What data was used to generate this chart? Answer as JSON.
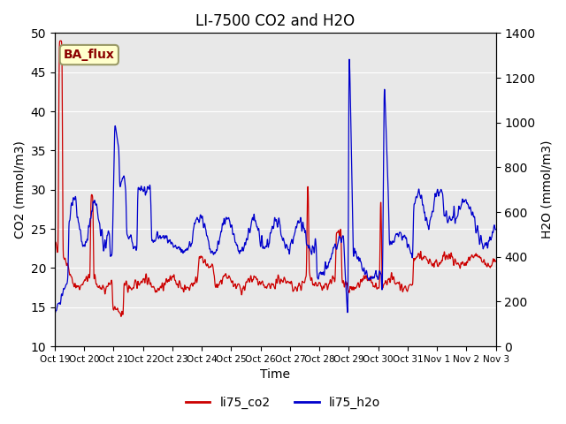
{
  "title": "LI-7500 CO2 and H2O",
  "xlabel": "Time",
  "ylabel_left": "CO2 (mmol/m3)",
  "ylabel_right": "H2O (mmol/m3)",
  "ylim_left": [
    10,
    50
  ],
  "ylim_right": [
    0,
    1400
  ],
  "yticks_left": [
    10,
    15,
    20,
    25,
    30,
    35,
    40,
    45,
    50
  ],
  "yticks_right": [
    0,
    200,
    400,
    600,
    800,
    1000,
    1200,
    1400
  ],
  "xtick_labels": [
    "Oct 19",
    "Oct 20",
    "Oct 21",
    "Oct 22",
    "Oct 23",
    "Oct 24",
    "Oct 25",
    "Oct 26",
    "Oct 27",
    "Oct 28",
    "Oct 29",
    "Oct 30",
    "Oct 31",
    "Nov 1",
    "Nov 2",
    "Nov 3"
  ],
  "color_co2": "#cc0000",
  "color_h2o": "#0000cc",
  "legend_co2": "li75_co2",
  "legend_h2o": "li75_h2o",
  "background_color": "#e8e8e8",
  "box_color": "#ffffcc",
  "box_label": "BA_flux",
  "box_text_color": "#8b0000",
  "title_fontsize": 12,
  "label_fontsize": 10
}
